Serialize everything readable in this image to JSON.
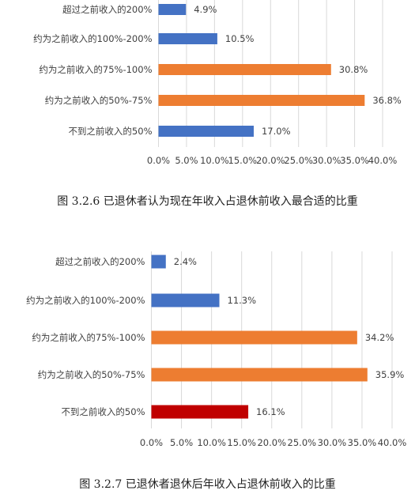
{
  "charts": [
    {
      "chart_data": {
        "type": "bar",
        "orientation": "horizontal",
        "categories": [
          "超过之前收入的200%",
          "约为之前收入的100%-200%",
          "约为之前收入的75%-100%",
          "约为之前收入的50%-75%",
          "不到之前收入的50%"
        ],
        "values": [
          4.9,
          10.5,
          30.8,
          36.8,
          17.0
        ],
        "value_labels": [
          "4.9%",
          "10.5%",
          "30.8%",
          "36.8%",
          "17.0%"
        ],
        "bar_colors": [
          "#4472C4",
          "#4472C4",
          "#ED7D31",
          "#ED7D31",
          "#4472C4"
        ],
        "xlim": [
          0,
          40
        ],
        "xticks": [
          "0.0%",
          "5.0%",
          "10.0%",
          "15.0%",
          "20.0%",
          "25.0%",
          "30.0%",
          "35.0%",
          "40.0%"
        ],
        "grid": true,
        "title": "",
        "xlabel": "",
        "ylabel": ""
      },
      "caption": "图 3.2.6  已退休者认为现在年收入占退休前收入最合适的比重"
    },
    {
      "chart_data": {
        "type": "bar",
        "orientation": "horizontal",
        "categories": [
          "超过之前收入的200%",
          "约为之前收入的100%-200%",
          "约为之前收入的75%-100%",
          "约为之前收入的50%-75%",
          "不到之前收入的50%"
        ],
        "values": [
          2.4,
          11.3,
          34.2,
          35.9,
          16.1
        ],
        "value_labels": [
          "2.4%",
          "11.3%",
          "34.2%",
          "35.9%",
          "16.1%"
        ],
        "bar_colors": [
          "#4472C4",
          "#4472C4",
          "#ED7D31",
          "#ED7D31",
          "#C00000"
        ],
        "xlim": [
          0,
          40
        ],
        "xticks": [
          "0.0%",
          "5.0%",
          "10.0%",
          "15.0%",
          "20.0%",
          "25.0%",
          "30.0%",
          "35.0%",
          "40.0%"
        ],
        "grid": true,
        "title": "",
        "xlabel": "",
        "ylabel": ""
      },
      "caption": "图 3.2.7  已退休者退休后年收入占退休前收入的比重"
    }
  ]
}
